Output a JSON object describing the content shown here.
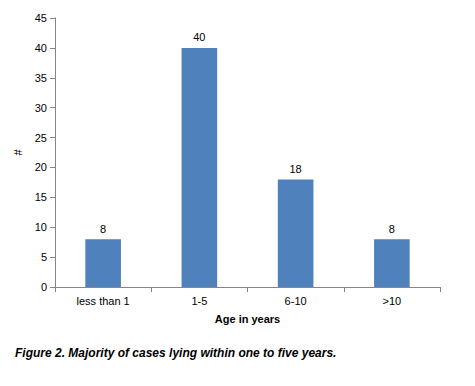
{
  "chart_data": {
    "type": "bar",
    "caption": "Figure 2. Majority of cases lying within one to five years.",
    "x_label": "Age in years",
    "y_label": "#",
    "categories": [
      "less than 1",
      "1-5",
      "6-10",
      ">10"
    ],
    "values": [
      8,
      40,
      18,
      8
    ],
    "color": "#4f81bd",
    "ylim": [
      0,
      45
    ],
    "yticks": [
      0,
      5,
      10,
      15,
      20,
      25,
      30,
      35,
      40,
      45
    ],
    "grid": false,
    "data_labels": true
  }
}
